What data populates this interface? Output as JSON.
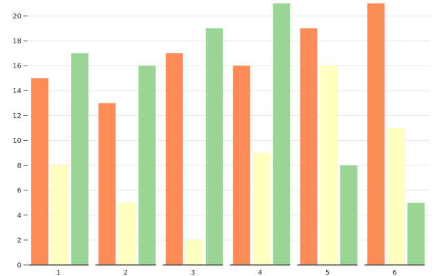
{
  "chart_data": {
    "type": "bar",
    "title": "",
    "xlabel": "",
    "ylabel": "",
    "categories": [
      "1",
      "2",
      "3",
      "4",
      "5",
      "6"
    ],
    "series": [
      {
        "values": [
          15,
          13,
          17,
          16,
          19,
          21
        ],
        "color": "#fc8d59"
      },
      {
        "values": [
          8,
          5,
          2,
          9,
          16,
          11
        ],
        "color": "#ffffbf"
      },
      {
        "values": [
          17,
          16,
          19,
          21,
          8,
          5
        ],
        "color": "#99d594"
      }
    ],
    "ylim": [
      0,
      21
    ],
    "yticks": [
      0,
      2,
      4,
      6,
      8,
      10,
      12,
      14,
      16,
      18,
      20
    ],
    "grid": true,
    "legend": "none"
  }
}
